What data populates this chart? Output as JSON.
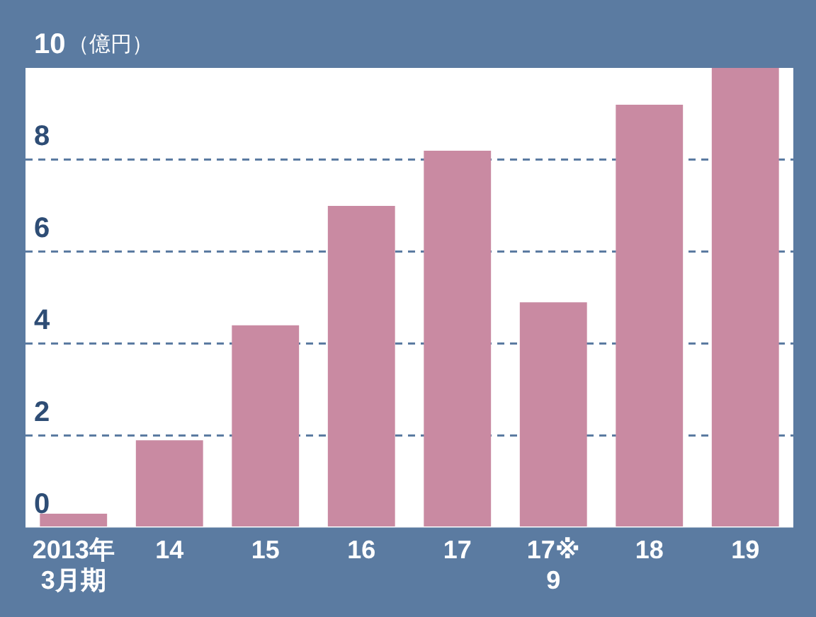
{
  "chart_data": {
    "type": "bar",
    "ylabel": "（億円）",
    "categories": [
      "2013年\n3月期",
      "14",
      "15",
      "16",
      "17",
      "17※\n9",
      "18",
      "19"
    ],
    "values": [
      0.3,
      1.9,
      4.4,
      7.0,
      8.2,
      4.9,
      9.2,
      10.0
    ],
    "color": "#c98aa2",
    "ylim": [
      0,
      10
    ],
    "yticks": [
      0,
      2,
      4,
      6,
      8,
      10
    ],
    "grid": "y"
  }
}
